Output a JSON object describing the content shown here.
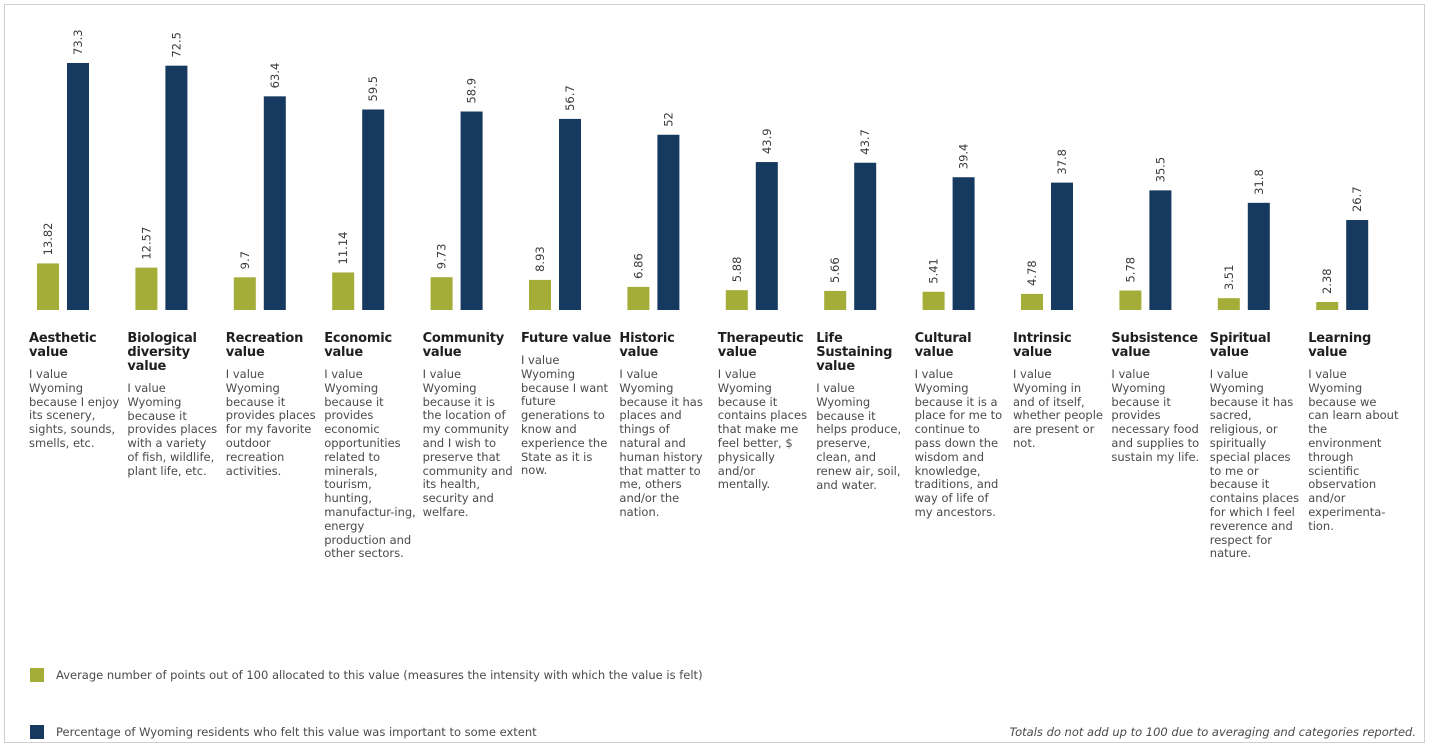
{
  "colors": {
    "intensity": "#a4ad37",
    "percentage": "#163a5f"
  },
  "chart_data": {
    "type": "bar",
    "ylim": [
      0,
      80
    ],
    "categories": [
      {
        "title": "Aesthetic value",
        "description": "I value Wyoming because I enjoy its scenery, sights, sounds, smells, etc."
      },
      {
        "title": "Biological diversity value",
        "description": "I value Wyoming because it provides places with a variety of fish, wildlife, plant life, etc."
      },
      {
        "title": "Recreation value",
        "description": "I value Wyoming because it provides places for my favorite outdoor recreation activities."
      },
      {
        "title": "Economic value",
        "description": "I value Wyoming because it provides economic opportunities related to minerals, tourism, hunting, manufactur-ing, energy production and other sectors."
      },
      {
        "title": "Community value",
        "description": "I value Wyoming because it is the location of my community and I wish to preserve that community and its health, security and welfare."
      },
      {
        "title": "Future value",
        "description": "I value Wyoming because I want future generations to know and experience the State as it is now."
      },
      {
        "title": "Historic value",
        "description": "I value Wyoming because it has places and things of natural and human history that matter to me, others and/or the nation."
      },
      {
        "title": "Therapeutic value",
        "description": "I value Wyoming because it contains places that make me feel better, $ physically and/or mentally."
      },
      {
        "title": "Life Sustaining value",
        "description": "I value Wyoming because it helps produce, preserve, clean, and renew air, soil, and water."
      },
      {
        "title": "Cultural value",
        "description": "I value Wyoming because it is a place for me to continue to pass down the wisdom and knowledge, traditions, and way of life of my ancestors."
      },
      {
        "title": "Intrinsic value",
        "description": "I value Wyoming in and of itself, whether people are present or not."
      },
      {
        "title": "Subsistence value",
        "description": "I value Wyoming because it provides necessary food and supplies to sustain my life."
      },
      {
        "title": "Spiritual value",
        "description": "I value Wyoming because it has sacred, religious, or spiritually special places to me or because it contains places for which I feel reverence and respect for nature."
      },
      {
        "title": "Learning value",
        "description": "I value Wyoming because we can learn about the environment through scientific observation and/or experimenta-tion."
      }
    ],
    "series": [
      {
        "name": "Average number of points out of 100 allocated to this value (measures the intensity with which the value is felt)",
        "values": [
          13.82,
          12.57,
          9.7,
          11.14,
          9.73,
          8.93,
          6.86,
          5.88,
          5.66,
          5.41,
          4.78,
          5.78,
          3.51,
          2.38
        ]
      },
      {
        "name": "Percentage of Wyoming residents who felt this value was important to some extent",
        "values": [
          73.3,
          72.5,
          63.4,
          59.5,
          58.9,
          56.7,
          52,
          43.9,
          43.7,
          39.4,
          37.8,
          35.5,
          31.8,
          26.7
        ]
      }
    ],
    "value_labels": [
      [
        "13.82",
        "12.57",
        "9.7",
        "11.14",
        "9.73",
        "8.93",
        "6.86",
        "5.88",
        "5.66",
        "5.41",
        "4.78",
        "5.78",
        "3.51",
        "2.38"
      ],
      [
        "73.3",
        "72.5",
        "63.4",
        "59.5",
        "58.9",
        "56.7",
        "52",
        "43.9",
        "43.7",
        "39.4",
        "37.8",
        "35.5",
        "31.8",
        "26.7"
      ]
    ],
    "legend_position": "bottom-left",
    "grid": false
  },
  "footnote": "Totals do not add up to 100 due to averaging and categories reported."
}
